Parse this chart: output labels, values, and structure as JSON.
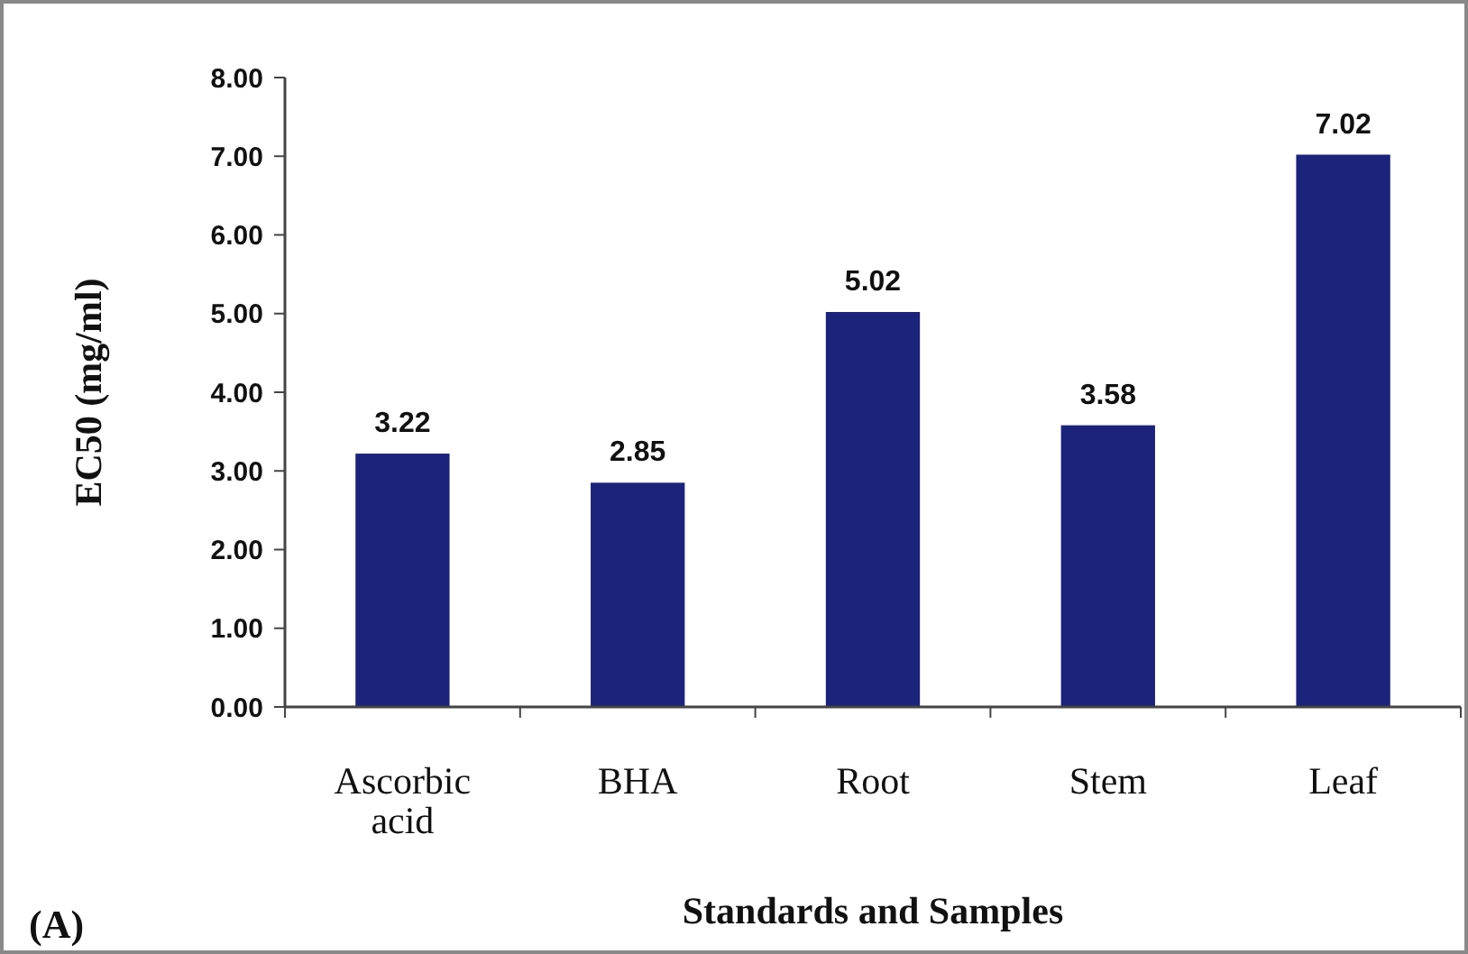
{
  "chart_data": {
    "type": "bar",
    "xlabel": "Standards and Samples",
    "ylabel": "EC50 (mg/ml)",
    "categories": [
      "Ascorbic acid",
      "BHA",
      "Root",
      "Stem",
      "Leaf"
    ],
    "values": [
      3.22,
      2.85,
      5.02,
      3.58,
      7.02
    ],
    "color": "#1b237a",
    "ylim": [
      0,
      8
    ],
    "yticks": [
      {
        "value": 0,
        "label": "0.00"
      },
      {
        "value": 1,
        "label": "1.00"
      },
      {
        "value": 2,
        "label": "2.00"
      },
      {
        "value": 3,
        "label": "3.00"
      },
      {
        "value": 4,
        "label": "4.00"
      },
      {
        "value": 5,
        "label": "5.00"
      },
      {
        "value": 6,
        "label": "6.00"
      },
      {
        "value": 7,
        "label": "7.00"
      },
      {
        "value": 8,
        "label": "8.00"
      }
    ],
    "data_labels": true,
    "grid": false,
    "annotations": [
      "(A)"
    ]
  }
}
